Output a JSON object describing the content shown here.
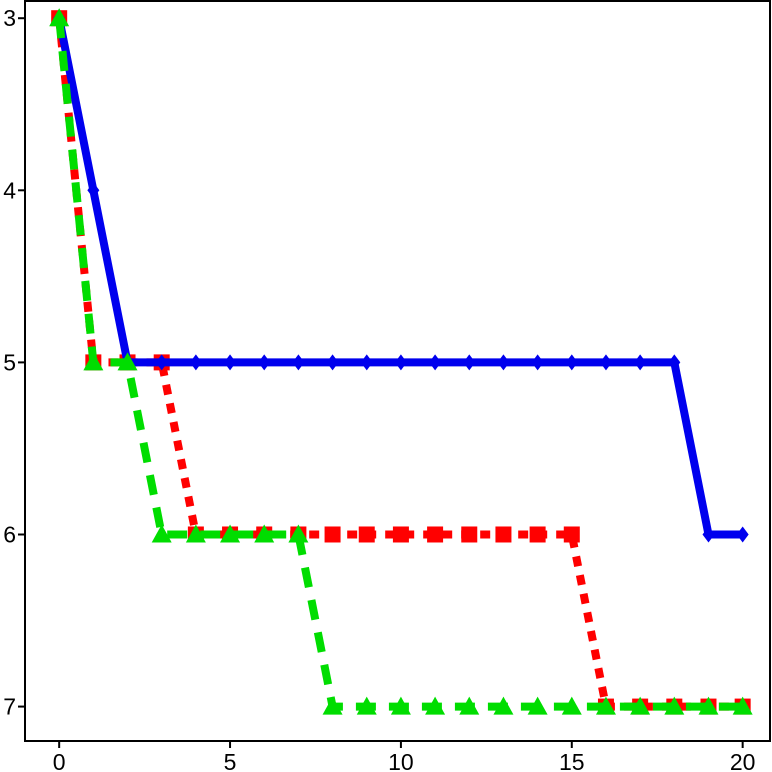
{
  "chart_data": {
    "type": "line",
    "x": [
      0,
      1,
      2,
      3,
      4,
      5,
      6,
      7,
      8,
      9,
      10,
      11,
      12,
      13,
      14,
      15,
      16,
      17,
      18,
      19,
      20
    ],
    "xlim": [
      -1,
      20.8
    ],
    "ylim": [
      2.9,
      7.2
    ],
    "y_inverted": true,
    "xticks": [
      0,
      5,
      10,
      15,
      20
    ],
    "xtick_labels": [
      "0",
      "5",
      "10",
      "15",
      "20"
    ],
    "yticks": [
      3,
      4,
      5,
      6,
      7
    ],
    "ytick_labels": [
      "3",
      "4",
      "5",
      "6",
      "7"
    ],
    "title": "",
    "xlabel": "",
    "ylabel": "",
    "grid": false,
    "legend": "none",
    "series": [
      {
        "color": "#0000ee",
        "line_style": "solid",
        "marker": "diamond",
        "values": [
          3,
          4,
          5,
          5,
          5,
          5,
          5,
          5,
          5,
          5,
          5,
          5,
          5,
          5,
          5,
          5,
          5,
          5,
          5,
          6,
          6
        ]
      },
      {
        "color": "#ff0000",
        "line_style": "dotted",
        "marker": "square",
        "values": [
          3,
          5,
          5,
          5,
          6,
          6,
          6,
          6,
          6,
          6,
          6,
          6,
          6,
          6,
          6,
          6,
          7,
          7,
          7,
          7,
          7
        ]
      },
      {
        "color": "#00dd00",
        "line_style": "dashed",
        "marker": "triangle",
        "values": [
          3,
          5,
          5,
          6,
          6,
          6,
          6,
          6,
          7,
          7,
          7,
          7,
          7,
          7,
          7,
          7,
          7,
          7,
          7,
          7,
          7
        ]
      }
    ]
  }
}
